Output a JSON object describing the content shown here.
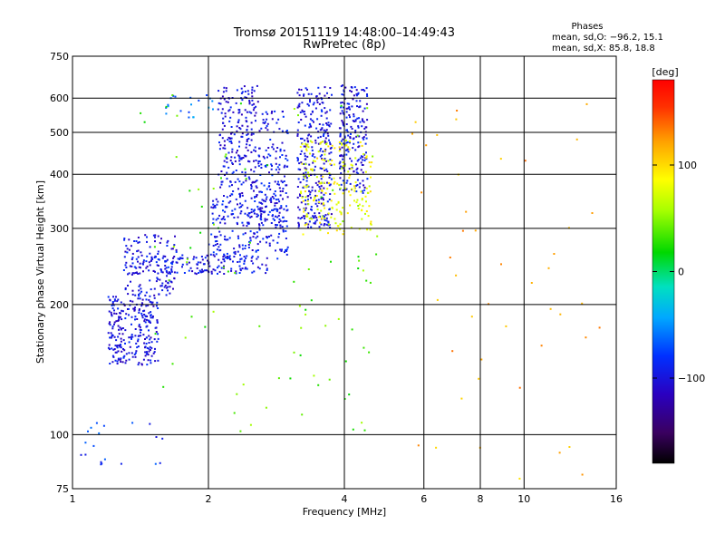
{
  "chart_data": {
    "type": "scatter",
    "title": "Tromsø 20151119 14:48:00–14:49:43",
    "subtitle": "RwPretec (8p)",
    "xlabel": "Frequency [MHz]",
    "ylabel": "Stationary phase Virtual Height [km]",
    "x_scale": "log",
    "y_scale": "log",
    "xlim": [
      1,
      16
    ],
    "ylim": [
      75,
      750
    ],
    "x_ticks": [
      {
        "value": 1,
        "label": "1"
      },
      {
        "value": 2,
        "label": "2"
      },
      {
        "value": 4,
        "label": "4"
      },
      {
        "value": 6,
        "label": "6"
      },
      {
        "value": 8,
        "label": "8"
      },
      {
        "value": 10,
        "label": "10"
      },
      {
        "value": 16,
        "label": "16"
      }
    ],
    "x_gridlines": [
      2,
      4,
      6,
      8,
      10
    ],
    "y_ticks": [
      {
        "value": 75,
        "label": "75"
      },
      {
        "value": 100,
        "label": "100"
      },
      {
        "value": 200,
        "label": "200"
      },
      {
        "value": 300,
        "label": "300"
      },
      {
        "value": 400,
        "label": "400"
      },
      {
        "value": 500,
        "label": "500"
      },
      {
        "value": 600,
        "label": "600"
      },
      {
        "value": 750,
        "label": "750"
      }
    ],
    "y_gridlines": [
      100,
      200,
      300,
      400,
      500,
      600
    ],
    "grid": true,
    "phases": {
      "heading": "Phases",
      "line_o": "mean, sd,O: −96.2, 15.1",
      "line_x": "mean, sd,X:  85.8, 18.8"
    },
    "colorbar": {
      "label": "[deg]",
      "range": [
        -180,
        180
      ],
      "ticks": [
        {
          "value": 100,
          "label": "100"
        },
        {
          "value": 0,
          "label": "0"
        },
        {
          "value": -100,
          "label": "−100"
        }
      ]
    },
    "traces": [
      {
        "name": "",
        "phase": -100,
        "x_range": [
          1.2,
          1.55
        ],
        "y_range": [
          145,
          210
        ],
        "count": 260
      },
      {
        "name": "",
        "phase": -100,
        "x_range": [
          1.3,
          1.7
        ],
        "y_range": [
          210,
          290
        ],
        "count": 130
      },
      {
        "name": "",
        "phase": -95,
        "x_range": [
          1.35,
          2.7
        ],
        "y_range": [
          235,
          260
        ],
        "count": 160
      },
      {
        "name": "",
        "phase": -95,
        "x_range": [
          2.0,
          3.0
        ],
        "y_range": [
          255,
          360
        ],
        "count": 240
      },
      {
        "name": "",
        "phase": -100,
        "x_range": [
          2.1,
          2.6
        ],
        "y_range": [
          350,
          640
        ],
        "count": 230
      },
      {
        "name": "",
        "phase": -95,
        "x_range": [
          2.6,
          3.0
        ],
        "y_range": [
          300,
          560
        ],
        "count": 140
      },
      {
        "name": "",
        "phase": -100,
        "x_range": [
          3.15,
          3.75
        ],
        "y_range": [
          300,
          640
        ],
        "count": 300
      },
      {
        "name": "",
        "phase": -100,
        "x_range": [
          3.9,
          4.5
        ],
        "y_range": [
          360,
          650
        ],
        "count": 200
      },
      {
        "name": "",
        "phase": 85,
        "x_range": [
          3.2,
          4.6
        ],
        "y_range": [
          290,
          480
        ],
        "count": 200
      },
      {
        "name": "",
        "phase": -60,
        "x_range": [
          1.6,
          2.1
        ],
        "y_range": [
          540,
          610
        ],
        "count": 20
      },
      {
        "name": "",
        "phase": -80,
        "x_range": [
          1.04,
          1.6
        ],
        "y_range": [
          85,
          108
        ],
        "count": 20
      },
      {
        "name": "",
        "phase": 40,
        "x_range": [
          1.4,
          4.8
        ],
        "y_range": [
          100,
          620
        ],
        "count": 90
      },
      {
        "name": "",
        "phase": 120,
        "x_range": [
          5.5,
          15
        ],
        "y_range": [
          78,
          620
        ],
        "count": 45
      }
    ]
  }
}
